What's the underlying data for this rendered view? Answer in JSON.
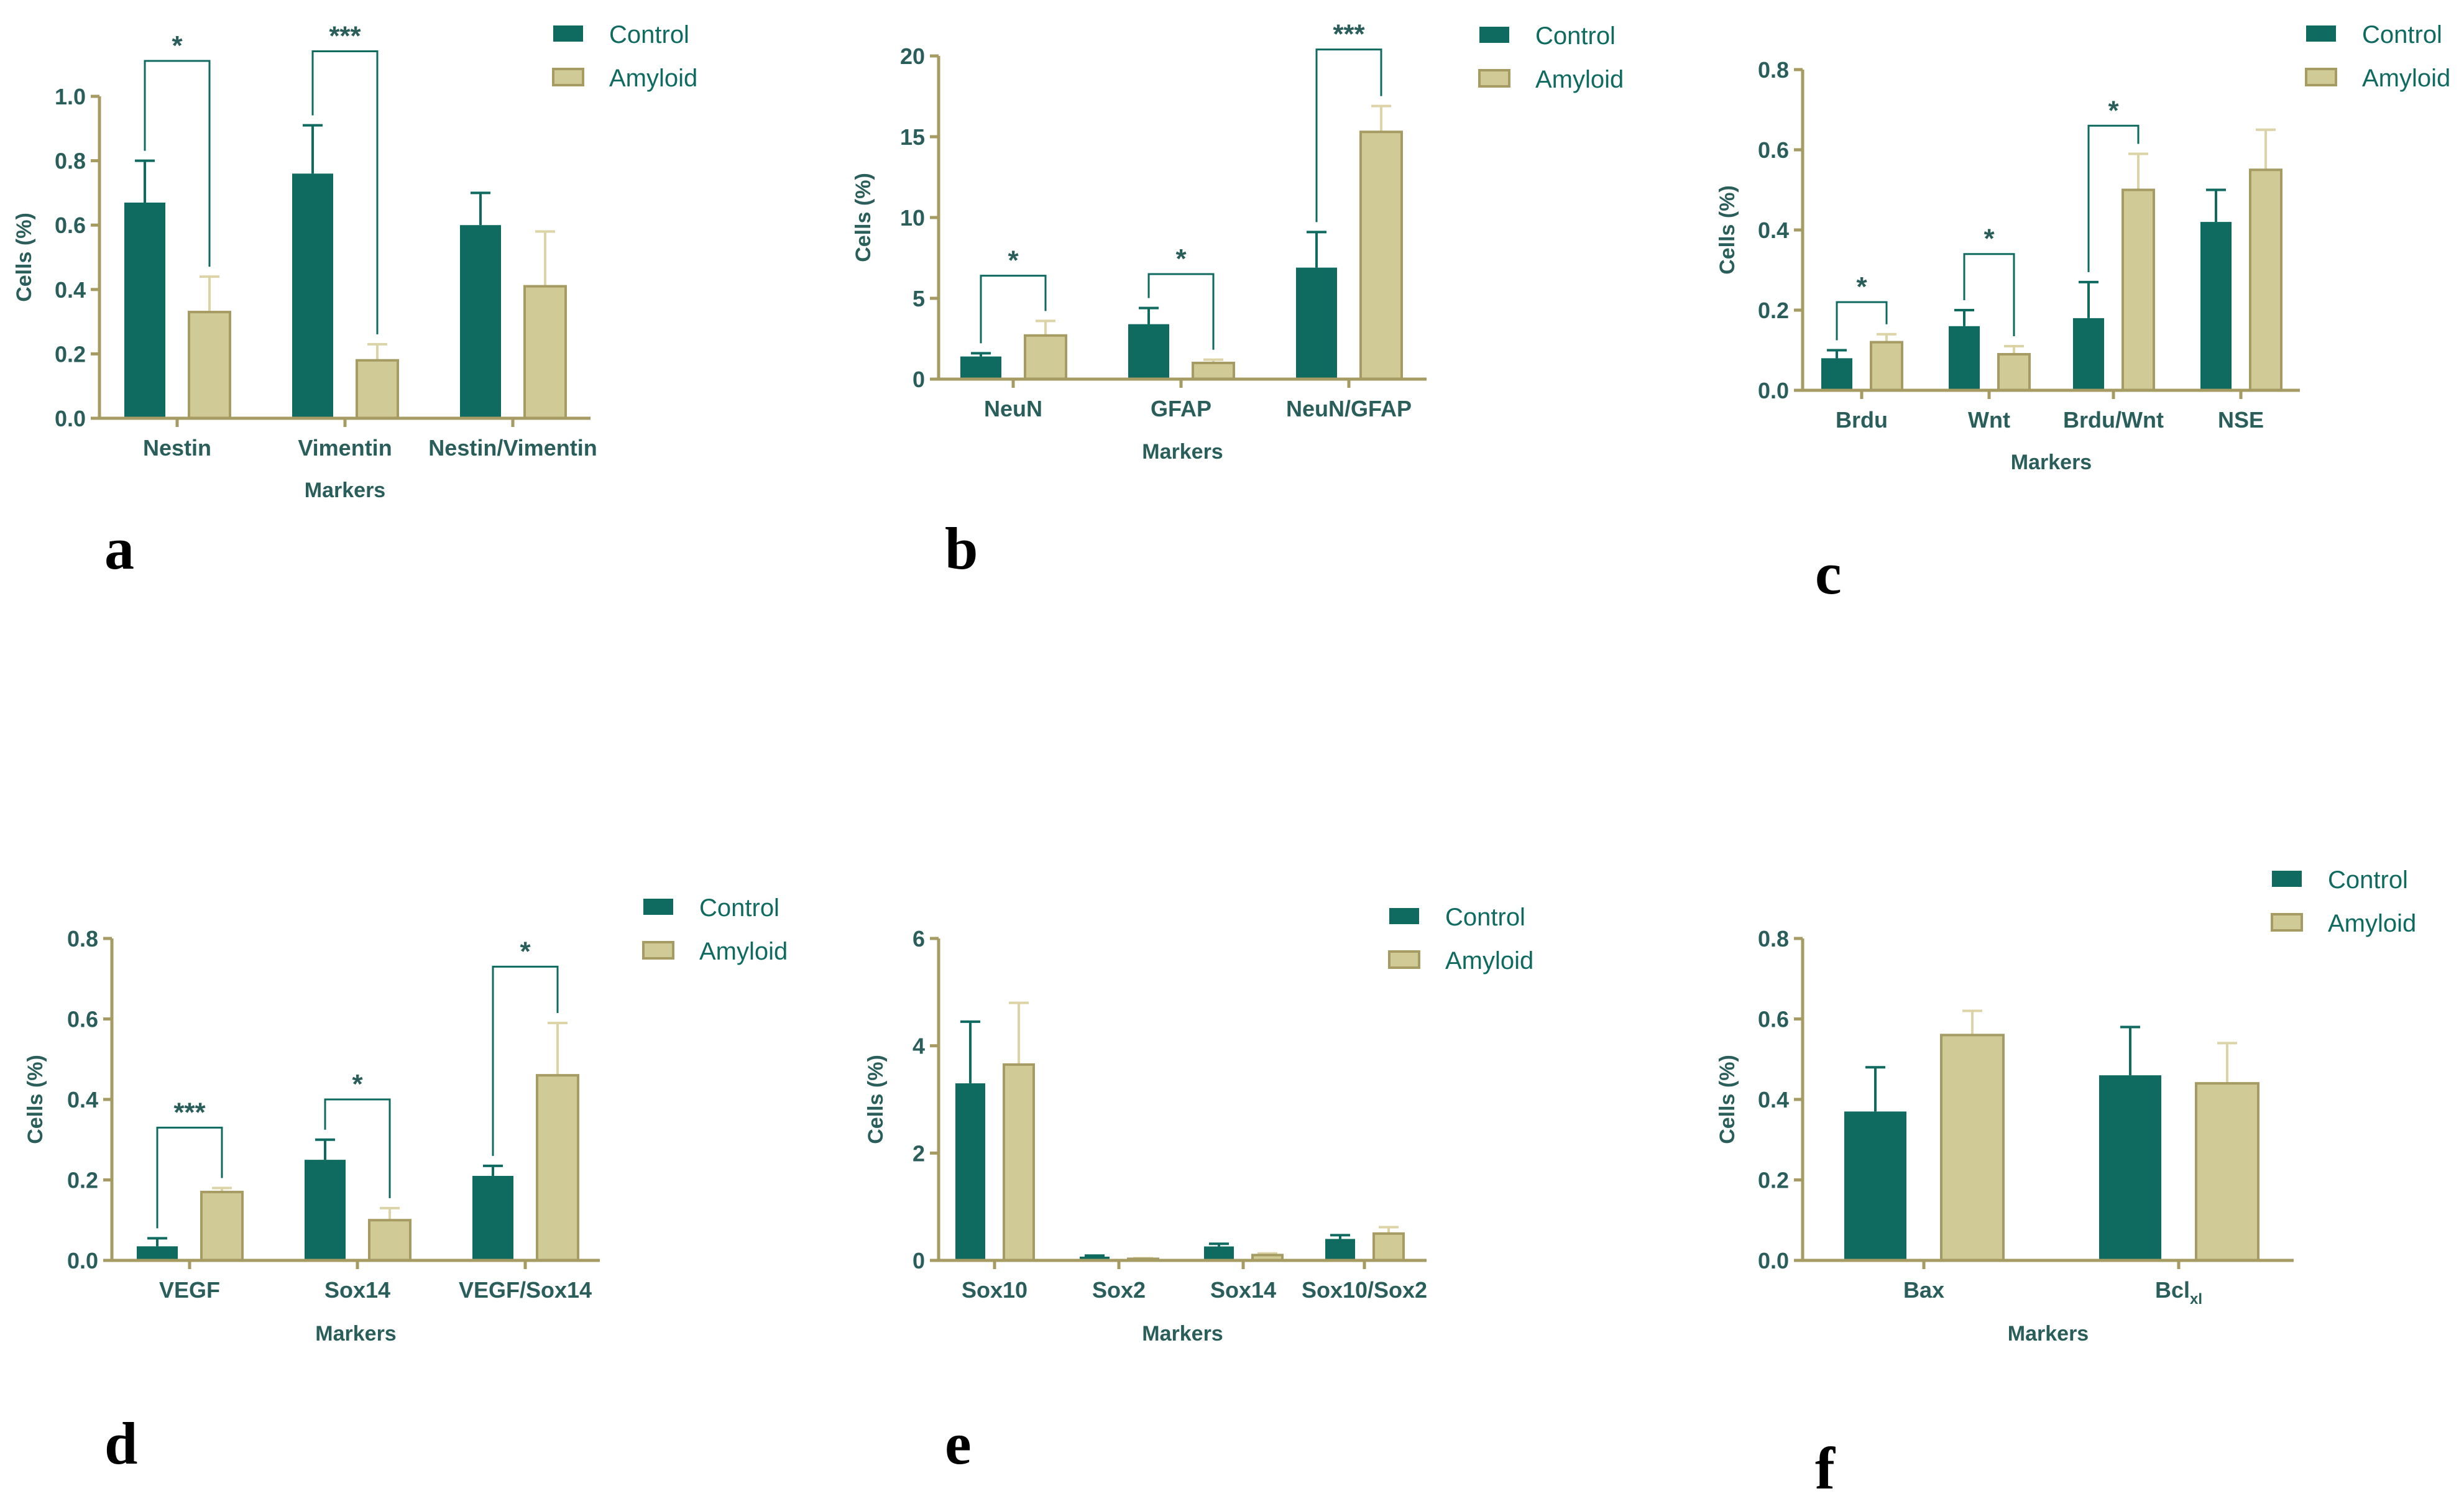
{
  "colors": {
    "control": "#0f6a60",
    "amyloid": "#cfca96",
    "amyloid_edge": "#a69b62",
    "control_err": "#0f6a60",
    "amyloid_err": "#dcd3a6"
  },
  "chart_data": [
    {
      "type": "bar",
      "panel": "a",
      "ylabel": "Cells (%)",
      "xlabel": "Markers",
      "ylim": [
        0,
        1.0
      ],
      "yticks": [
        "0.0",
        "0.2",
        "0.4",
        "0.6",
        "0.8",
        "1.0"
      ],
      "categories": [
        "Nestin",
        "Vimentin",
        "Nestin/Vimentin"
      ],
      "series": [
        {
          "name": "Control",
          "values": [
            0.67,
            0.76,
            0.6
          ],
          "errors": [
            0.13,
            0.15,
            0.1
          ]
        },
        {
          "name": "Amyloid",
          "values": [
            0.33,
            0.18,
            0.41
          ],
          "errors": [
            0.11,
            0.05,
            0.17
          ]
        }
      ],
      "significance": [
        {
          "category": 0,
          "label": "*",
          "level": 1.11
        },
        {
          "category": 1,
          "label": "***",
          "level": 1.14
        }
      ]
    },
    {
      "type": "bar",
      "panel": "b",
      "ylabel": "Cells (%)",
      "xlabel": "Markers",
      "ylim": [
        0,
        20
      ],
      "yticks": [
        "0",
        "5",
        "10",
        "15",
        "20"
      ],
      "categories": [
        "NeuN",
        "GFAP",
        "NeuN/GFAP"
      ],
      "series": [
        {
          "name": "Control",
          "values": [
            1.4,
            3.4,
            6.9
          ],
          "errors": [
            0.2,
            1.0,
            2.2
          ]
        },
        {
          "name": "Amyloid",
          "values": [
            2.7,
            1.0,
            15.3
          ],
          "errors": [
            0.9,
            0.2,
            1.6
          ]
        }
      ],
      "significance": [
        {
          "category": 0,
          "label": "*",
          "level": 6.4
        },
        {
          "category": 1,
          "label": "*",
          "level": 6.5
        },
        {
          "category": 2,
          "label": "***",
          "level": 20.4
        }
      ]
    },
    {
      "type": "bar",
      "panel": "c",
      "ylabel": "Cells (%)",
      "xlabel": "Markers",
      "ylim": [
        0,
        0.8
      ],
      "yticks": [
        "0.0",
        "0.2",
        "0.4",
        "0.6",
        "0.8"
      ],
      "categories": [
        "Brdu",
        "Wnt",
        "Brdu/Wnt",
        "NSE"
      ],
      "series": [
        {
          "name": "Control",
          "values": [
            0.08,
            0.16,
            0.18,
            0.42
          ],
          "errors": [
            0.02,
            0.04,
            0.09,
            0.08
          ]
        },
        {
          "name": "Amyloid",
          "values": [
            0.12,
            0.09,
            0.5,
            0.55
          ],
          "errors": [
            0.02,
            0.02,
            0.09,
            0.1
          ]
        }
      ],
      "significance": [
        {
          "category": 0,
          "label": "*",
          "level": 0.22
        },
        {
          "category": 1,
          "label": "*",
          "level": 0.34
        },
        {
          "category": 2,
          "label": "*",
          "level": 0.66
        }
      ]
    },
    {
      "type": "bar",
      "panel": "d",
      "ylabel": "Cells (%)",
      "xlabel": "Markers",
      "ylim": [
        0,
        0.8
      ],
      "yticks": [
        "0.0",
        "0.2",
        "0.4",
        "0.6",
        "0.8"
      ],
      "categories": [
        "VEGF",
        "Sox14",
        "VEGF/Sox14"
      ],
      "series": [
        {
          "name": "Control",
          "values": [
            0.035,
            0.25,
            0.21
          ],
          "errors": [
            0.02,
            0.05,
            0.025
          ]
        },
        {
          "name": "Amyloid",
          "values": [
            0.17,
            0.1,
            0.46
          ],
          "errors": [
            0.01,
            0.03,
            0.13
          ]
        }
      ],
      "significance": [
        {
          "category": 0,
          "label": "***",
          "level": 0.33
        },
        {
          "category": 1,
          "label": "*",
          "level": 0.4
        },
        {
          "category": 2,
          "label": "*",
          "level": 0.73
        }
      ]
    },
    {
      "type": "bar",
      "panel": "e",
      "ylabel": "Cells (%)",
      "xlabel": "Markers",
      "ylim": [
        0,
        6
      ],
      "yticks": [
        "0",
        "2",
        "4",
        "6"
      ],
      "categories": [
        "Sox10",
        "Sox2",
        "Sox14",
        "Sox10/Sox2"
      ],
      "series": [
        {
          "name": "Control",
          "values": [
            3.3,
            0.07,
            0.26,
            0.4
          ],
          "errors": [
            1.15,
            0.02,
            0.05,
            0.07
          ]
        },
        {
          "name": "Amyloid",
          "values": [
            3.65,
            0.03,
            0.1,
            0.5
          ],
          "errors": [
            1.15,
            0.01,
            0.03,
            0.12
          ]
        }
      ],
      "significance": []
    },
    {
      "type": "bar",
      "panel": "f",
      "ylabel": "Cells (%)",
      "xlabel": "Markers",
      "ylim": [
        0,
        0.8
      ],
      "yticks": [
        "0.0",
        "0.2",
        "0.4",
        "0.6",
        "0.8"
      ],
      "categories": [
        "Bax",
        "Bcl"
      ],
      "category_subscripts": [
        "",
        "xl"
      ],
      "series": [
        {
          "name": "Control",
          "values": [
            0.37,
            0.46
          ],
          "errors": [
            0.11,
            0.12
          ]
        },
        {
          "name": "Amyloid",
          "values": [
            0.56,
            0.44
          ],
          "errors": [
            0.06,
            0.1
          ]
        }
      ],
      "significance": []
    }
  ]
}
